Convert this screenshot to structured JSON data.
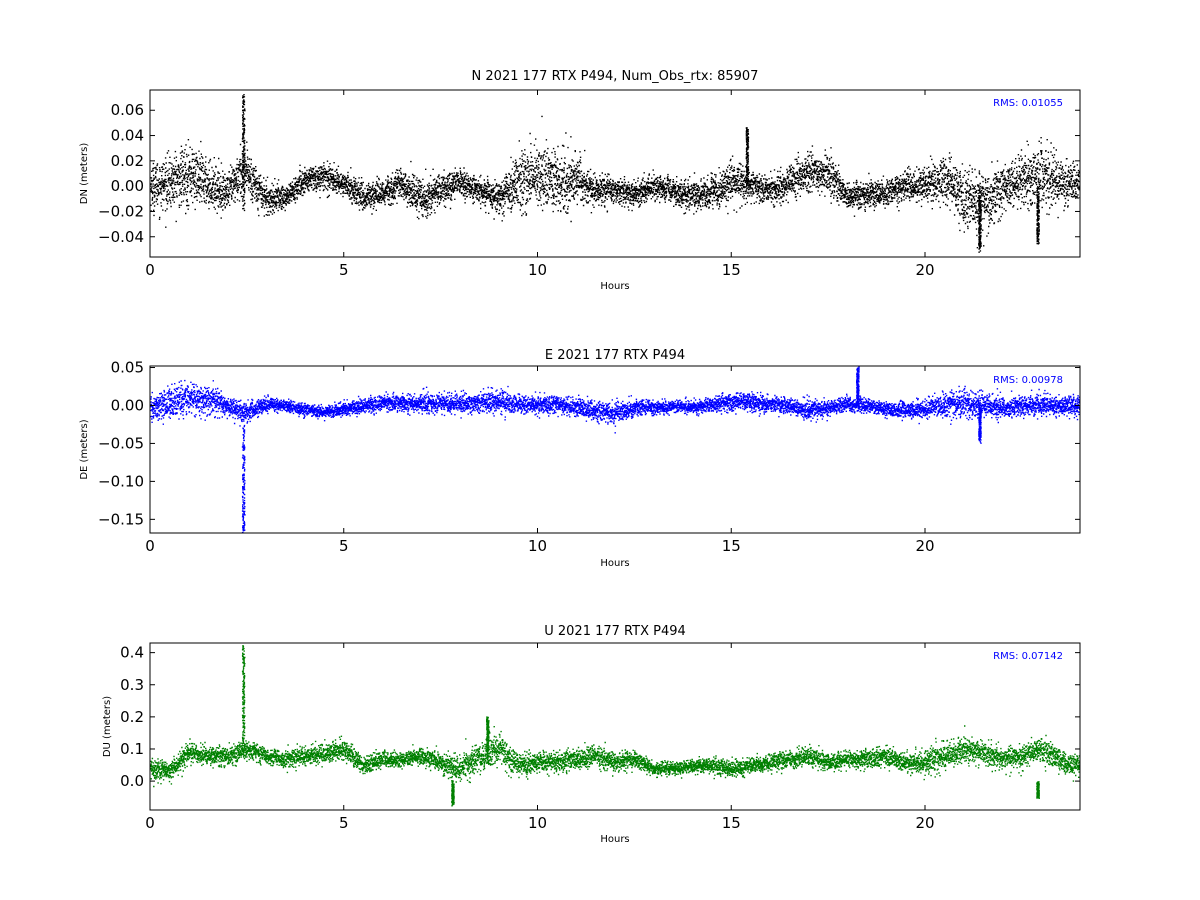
{
  "chart_data": [
    {
      "type": "scatter",
      "title": "N 2021 177 RTX  P494, Num_Obs_rtx: 85907",
      "xlabel": "Hours",
      "ylabel": "DN (meters)",
      "xlim": [
        0,
        24
      ],
      "ylim": [
        -0.056,
        0.076
      ],
      "xticks": [
        0,
        5,
        10,
        15,
        20
      ],
      "xtick_labels": [
        "0",
        "5",
        "10",
        "15",
        "20"
      ],
      "yticks": [
        -0.04,
        -0.02,
        0.0,
        0.02,
        0.04,
        0.06
      ],
      "ytick_labels": [
        "−0.04",
        "−0.02",
        "0.00",
        "0.02",
        "0.04",
        "0.06"
      ],
      "annotation": "RMS:  0.01055",
      "color": "#000000",
      "grid": false,
      "series": [
        {
          "x": [
            0,
            0.5,
            1,
            1.5,
            2,
            2.4,
            3,
            3.5,
            4,
            4.5,
            5,
            5.5,
            6,
            6.5,
            7,
            7.5,
            8,
            8.5,
            9,
            9.5,
            10,
            10.5,
            11,
            11.5,
            12,
            12.5,
            13,
            13.5,
            14,
            14.5,
            15,
            15.5,
            16,
            16.5,
            17,
            17.5,
            18,
            18.5,
            19,
            19.5,
            20,
            20.5,
            21,
            21.5,
            22,
            22.5,
            23,
            23.5,
            24
          ],
          "center": [
            0.0,
            0.003,
            0.01,
            0.002,
            -0.005,
            0.015,
            -0.01,
            -0.008,
            0.005,
            0.008,
            0.002,
            -0.008,
            -0.004,
            0.002,
            -0.01,
            -0.002,
            0.004,
            -0.004,
            -0.008,
            0.005,
            0.008,
            0.004,
            0.005,
            -0.002,
            -0.003,
            -0.006,
            0.0,
            -0.004,
            -0.008,
            -0.004,
            0.004,
            0.002,
            -0.004,
            0.004,
            0.012,
            0.01,
            -0.008,
            -0.006,
            -0.005,
            0.0,
            0.002,
            0.006,
            -0.01,
            -0.012,
            0.0,
            0.005,
            0.01,
            0.002,
            0.003
          ],
          "spread": [
            0.018,
            0.02,
            0.024,
            0.018,
            0.014,
            0.02,
            0.012,
            0.01,
            0.01,
            0.01,
            0.009,
            0.011,
            0.011,
            0.012,
            0.014,
            0.012,
            0.01,
            0.01,
            0.013,
            0.022,
            0.026,
            0.024,
            0.02,
            0.012,
            0.01,
            0.01,
            0.01,
            0.01,
            0.013,
            0.012,
            0.014,
            0.011,
            0.011,
            0.013,
            0.016,
            0.016,
            0.009,
            0.01,
            0.01,
            0.012,
            0.014,
            0.018,
            0.02,
            0.024,
            0.018,
            0.02,
            0.024,
            0.018,
            0.014
          ],
          "spikes": [
            [
              2.4,
              0.072,
              -0.02
            ],
            [
              15.4,
              0.046,
              0.0
            ],
            [
              21.4,
              -0.05,
              0.0
            ],
            [
              22.9,
              -0.044,
              0.0
            ]
          ]
        }
      ]
    },
    {
      "type": "scatter",
      "title": "E 2021 177 RTX  P494",
      "xlabel": "Hours",
      "ylabel": "DE (meters)",
      "xlim": [
        0,
        24
      ],
      "ylim": [
        -0.168,
        0.052
      ],
      "xticks": [
        0,
        5,
        10,
        15,
        20
      ],
      "xtick_labels": [
        "0",
        "5",
        "10",
        "15",
        "20"
      ],
      "yticks": [
        -0.15,
        -0.1,
        -0.05,
        0.0,
        0.05
      ],
      "ytick_labels": [
        "−0.15",
        "−0.10",
        "−0.05",
        "0.00",
        "0.05"
      ],
      "annotation": "RMS:  0.00978",
      "color": "#0000ff",
      "grid": false,
      "series": [
        {
          "x": [
            0,
            0.5,
            1,
            1.5,
            2,
            2.4,
            3,
            3.5,
            4,
            4.5,
            5,
            5.5,
            6,
            6.5,
            7,
            7.5,
            8,
            8.5,
            9,
            9.5,
            10,
            10.5,
            11,
            11.5,
            12,
            12.5,
            13,
            13.5,
            14,
            14.5,
            15,
            15.5,
            16,
            16.5,
            17,
            17.5,
            18,
            18.5,
            19,
            19.5,
            20,
            20.5,
            21,
            21.5,
            22,
            22.5,
            23,
            23.5,
            24
          ],
          "center": [
            -0.005,
            0.005,
            0.01,
            0.008,
            0.0,
            -0.01,
            0.002,
            0.0,
            -0.005,
            -0.008,
            -0.004,
            0.0,
            0.004,
            0.004,
            0.003,
            0.004,
            0.004,
            0.005,
            0.006,
            0.003,
            0.002,
            0.002,
            -0.002,
            -0.006,
            -0.01,
            -0.002,
            -0.002,
            0.0,
            -0.002,
            0.002,
            0.006,
            0.004,
            0.003,
            0.0,
            -0.006,
            -0.002,
            0.002,
            0.0,
            -0.004,
            -0.006,
            -0.004,
            0.002,
            0.004,
            0.002,
            -0.002,
            0.0,
            0.002,
            0.0,
            0.0
          ],
          "spread": [
            0.015,
            0.02,
            0.022,
            0.018,
            0.012,
            0.014,
            0.009,
            0.008,
            0.008,
            0.008,
            0.009,
            0.01,
            0.011,
            0.012,
            0.012,
            0.012,
            0.012,
            0.013,
            0.014,
            0.012,
            0.012,
            0.012,
            0.012,
            0.013,
            0.014,
            0.01,
            0.008,
            0.008,
            0.008,
            0.009,
            0.012,
            0.011,
            0.01,
            0.01,
            0.012,
            0.01,
            0.009,
            0.009,
            0.009,
            0.01,
            0.012,
            0.016,
            0.02,
            0.016,
            0.012,
            0.012,
            0.013,
            0.012,
            0.012
          ],
          "spikes": [
            [
              2.4,
              -0.168,
              -0.02
            ],
            [
              18.25,
              0.05,
              0.0
            ],
            [
              21.4,
              -0.045,
              0.0
            ]
          ]
        }
      ]
    },
    {
      "type": "scatter",
      "title": "U 2021 177 RTX  P494",
      "xlabel": "Hours",
      "ylabel": "DU (meters)",
      "xlim": [
        0,
        24
      ],
      "ylim": [
        -0.09,
        0.43
      ],
      "xticks": [
        0,
        5,
        10,
        15,
        20
      ],
      "xtick_labels": [
        "0",
        "5",
        "10",
        "15",
        "20"
      ],
      "yticks": [
        0.0,
        0.1,
        0.2,
        0.3,
        0.4
      ],
      "ytick_labels": [
        "0.0",
        "0.1",
        "0.2",
        "0.3",
        "0.4"
      ],
      "annotation": "RMS:  0.07142",
      "color": "#008000",
      "grid": false,
      "series": [
        {
          "x": [
            0,
            0.5,
            1,
            1.5,
            2,
            2.4,
            3,
            3.5,
            4,
            4.5,
            5,
            5.5,
            6,
            6.5,
            7,
            7.5,
            8,
            8.5,
            9,
            9.5,
            10,
            10.5,
            11,
            11.5,
            12,
            12.5,
            13,
            13.5,
            14,
            14.5,
            15,
            15.5,
            16,
            16.5,
            17,
            17.5,
            18,
            18.5,
            19,
            19.5,
            20,
            20.5,
            21,
            21.5,
            22,
            22.5,
            23,
            23.5,
            24
          ],
          "center": [
            0.04,
            0.03,
            0.09,
            0.08,
            0.08,
            0.1,
            0.08,
            0.07,
            0.08,
            0.09,
            0.1,
            0.05,
            0.07,
            0.07,
            0.08,
            0.06,
            0.04,
            0.08,
            0.1,
            0.05,
            0.06,
            0.06,
            0.07,
            0.08,
            0.06,
            0.07,
            0.04,
            0.04,
            0.05,
            0.05,
            0.04,
            0.05,
            0.06,
            0.07,
            0.08,
            0.06,
            0.07,
            0.07,
            0.08,
            0.06,
            0.06,
            0.08,
            0.1,
            0.09,
            0.07,
            0.08,
            0.1,
            0.06,
            0.05
          ],
          "spread": [
            0.03,
            0.03,
            0.03,
            0.03,
            0.03,
            0.03,
            0.025,
            0.025,
            0.028,
            0.03,
            0.03,
            0.03,
            0.025,
            0.022,
            0.025,
            0.03,
            0.04,
            0.05,
            0.05,
            0.035,
            0.03,
            0.03,
            0.035,
            0.03,
            0.025,
            0.025,
            0.02,
            0.02,
            0.022,
            0.022,
            0.025,
            0.022,
            0.025,
            0.028,
            0.03,
            0.025,
            0.025,
            0.028,
            0.03,
            0.028,
            0.035,
            0.04,
            0.04,
            0.035,
            0.03,
            0.035,
            0.04,
            0.035,
            0.03
          ],
          "spikes": [
            [
              2.4,
              0.42,
              0.08
            ],
            [
              7.8,
              -0.07,
              0.0
            ],
            [
              8.7,
              0.2,
              0.08
            ],
            [
              22.9,
              -0.05,
              0.0
            ]
          ]
        }
      ]
    }
  ]
}
